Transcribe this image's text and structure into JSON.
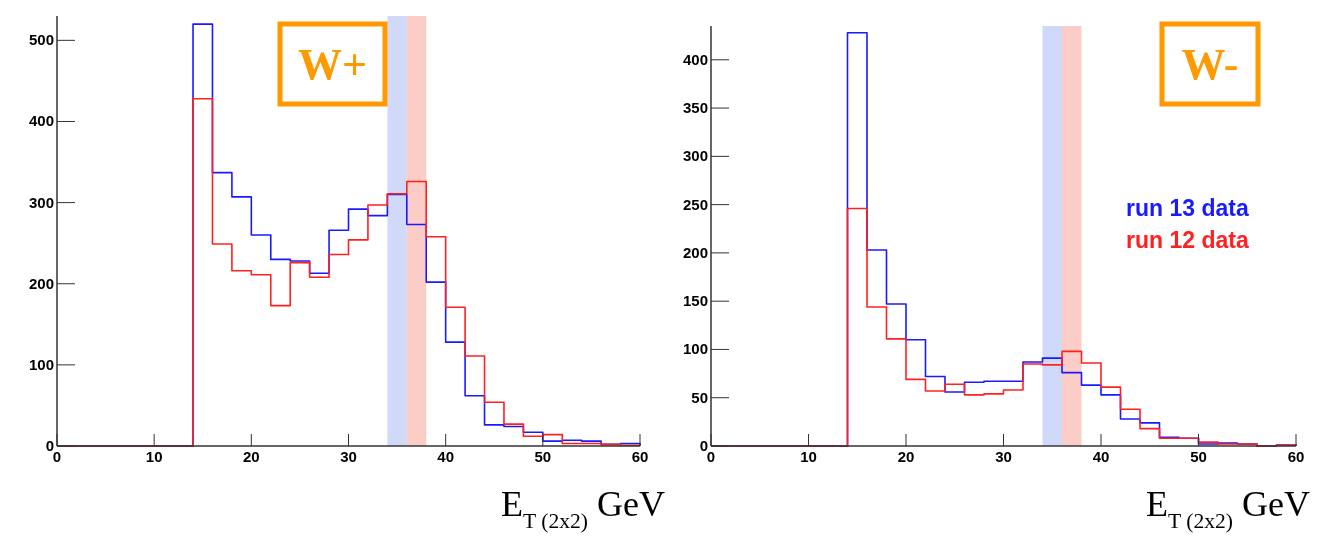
{
  "chart_data": [
    {
      "type": "histogram",
      "bins": [
        0,
        2,
        4,
        6,
        8,
        10,
        12,
        14,
        16,
        18,
        20,
        22,
        24,
        26,
        28,
        30,
        32,
        34,
        36,
        38,
        40,
        42,
        44,
        46,
        48,
        50,
        52,
        54,
        56,
        58,
        60
      ],
      "series": [
        {
          "color": "#1a1aff",
          "values": [
            0,
            0,
            0,
            0,
            0,
            0,
            0,
            520,
            337,
            307,
            260,
            230,
            228,
            213,
            266,
            292,
            284,
            310,
            273,
            202,
            128,
            62,
            26,
            24,
            17,
            6,
            7,
            6,
            2,
            3
          ]
        },
        {
          "color": "#ff2020",
          "values": [
            0,
            0,
            0,
            0,
            0,
            0,
            0,
            428,
            249,
            216,
            211,
            173,
            226,
            208,
            236,
            254,
            297,
            311,
            326,
            258,
            171,
            111,
            54,
            27,
            12,
            14,
            3,
            3,
            2,
            1
          ]
        }
      ],
      "xlim": [
        0,
        60
      ],
      "ylim": [
        0,
        530
      ],
      "xticks": [
        0,
        10,
        20,
        30,
        40,
        50,
        60
      ],
      "yticks": [
        0,
        100,
        200,
        300,
        400,
        500
      ],
      "bands": [
        {
          "axis": "x",
          "from": 34,
          "to": 36,
          "color": "#ccd5f7"
        },
        {
          "axis": "x",
          "from": 36,
          "to": 38,
          "color": "#fcc8c0"
        }
      ],
      "xlabel": "E$_{T (2x2)}$ GeV",
      "annotations": [
        "W+"
      ]
    },
    {
      "type": "histogram",
      "bins": [
        0,
        2,
        4,
        6,
        8,
        10,
        12,
        14,
        16,
        18,
        20,
        22,
        24,
        26,
        28,
        30,
        32,
        34,
        36,
        38,
        40,
        42,
        44,
        46,
        48,
        50,
        52,
        54,
        56,
        58,
        60
      ],
      "series": [
        {
          "name": "run 13 data",
          "color": "#1a1aff",
          "values": [
            0,
            0,
            0,
            0,
            0,
            0,
            0,
            428,
            203,
            147,
            110,
            72,
            56,
            66,
            67,
            67,
            87,
            91,
            76,
            63,
            53,
            28,
            24,
            9,
            8,
            2,
            3,
            2,
            0,
            1
          ]
        },
        {
          "name": "run 12 data",
          "color": "#ff2020",
          "values": [
            0,
            0,
            0,
            0,
            0,
            0,
            0,
            246,
            144,
            111,
            69,
            57,
            64,
            53,
            54,
            58,
            85,
            84,
            98,
            86,
            61,
            38,
            18,
            8,
            8,
            4,
            2,
            2,
            0,
            1
          ]
        }
      ],
      "xlim": [
        0,
        60
      ],
      "ylim": [
        0,
        435
      ],
      "xticks": [
        0,
        10,
        20,
        30,
        40,
        50,
        60
      ],
      "yticks": [
        0,
        50,
        100,
        150,
        200,
        250,
        300,
        350,
        400
      ],
      "bands": [
        {
          "axis": "x",
          "from": 34,
          "to": 36,
          "color": "#ccd5f7"
        },
        {
          "axis": "x",
          "from": 36,
          "to": 38,
          "color": "#fcc8c0"
        }
      ],
      "xlabel": "E$_{T (2x2)}$ GeV",
      "annotations": [
        "W-"
      ],
      "legend": "right"
    }
  ]
}
